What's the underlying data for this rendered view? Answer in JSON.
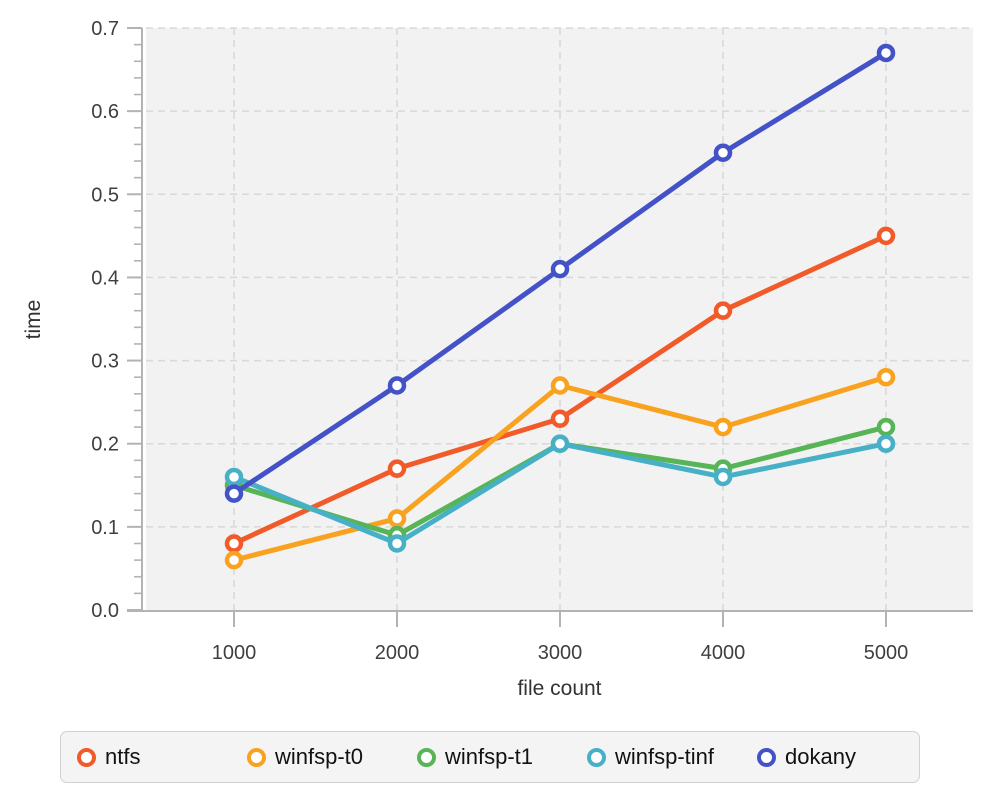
{
  "chart_data": {
    "type": "line",
    "title": "",
    "xlabel": "file count",
    "ylabel": "time",
    "x": [
      1000,
      2000,
      3000,
      4000,
      5000
    ],
    "xtick_labels": [
      "1000",
      "2000",
      "3000",
      "4000",
      "5000"
    ],
    "ylim": [
      0.0,
      0.7
    ],
    "yticks": [
      0.0,
      0.1,
      0.2,
      0.3,
      0.4,
      0.5,
      0.6,
      0.7
    ],
    "ytick_labels": [
      "0.0",
      "0.1",
      "0.2",
      "0.3",
      "0.4",
      "0.5",
      "0.6",
      "0.7"
    ],
    "y_minor_tick_step": 0.02,
    "grid": true,
    "grid_style": "dashed",
    "legend_position": "bottom",
    "marker": "open-circle",
    "series": [
      {
        "name": "ntfs",
        "color": "#f05b29",
        "values": [
          0.08,
          0.17,
          0.23,
          0.36,
          0.45
        ]
      },
      {
        "name": "winfsp-t0",
        "color": "#f9a21f",
        "values": [
          0.06,
          0.11,
          0.27,
          0.22,
          0.28
        ]
      },
      {
        "name": "winfsp-t1",
        "color": "#57b457",
        "values": [
          0.15,
          0.09,
          0.2,
          0.17,
          0.22
        ]
      },
      {
        "name": "winfsp-tinf",
        "color": "#47b0c7",
        "values": [
          0.16,
          0.08,
          0.2,
          0.16,
          0.2
        ]
      },
      {
        "name": "dokany",
        "color": "#4452c7",
        "values": [
          0.14,
          0.27,
          0.41,
          0.55,
          0.67
        ]
      }
    ]
  },
  "style": {
    "plot_bg": "#f2f2f2",
    "grid_color": "#d8d8d8",
    "axis_color": "#b3b3b3",
    "tick_label_color": "#3f3f3f",
    "axis_title_color": "#333333",
    "legend_bg": "#f4f4f4",
    "legend_border": "#d0d0d2",
    "legend_text": "#111111"
  }
}
